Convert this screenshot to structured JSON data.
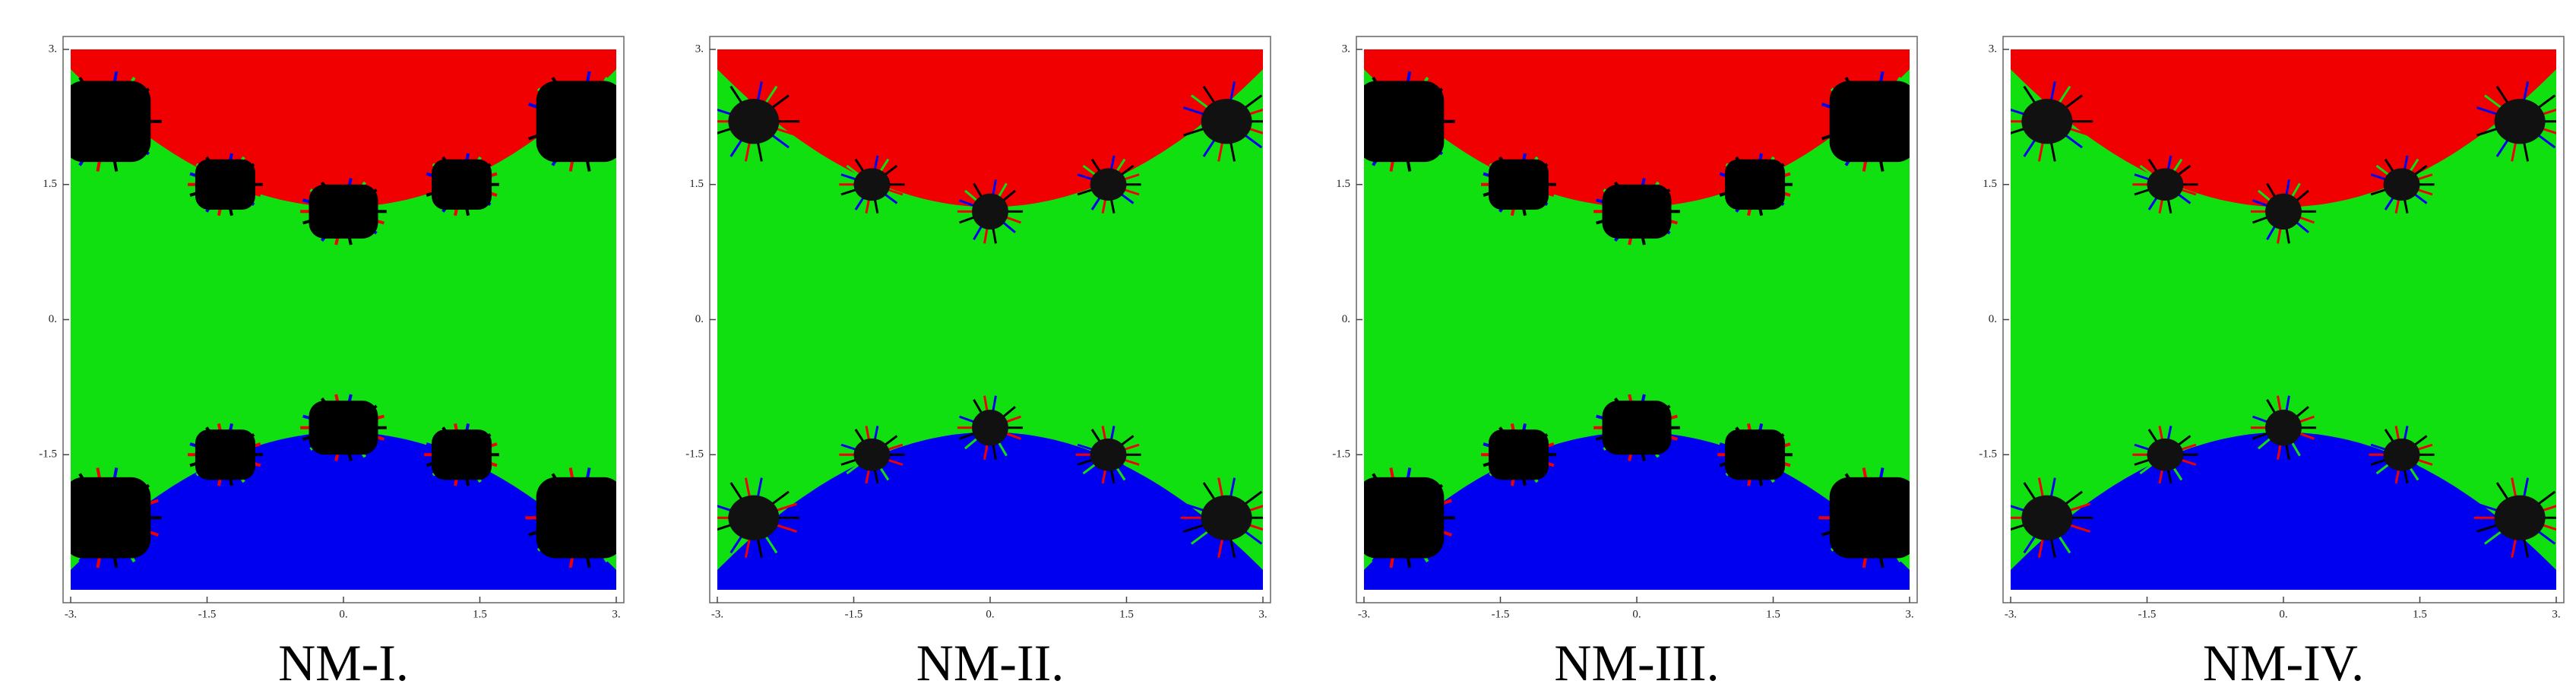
{
  "chart_data": [
    {
      "type": "basin",
      "title": "NM-I.",
      "xlim": [
        -3,
        3
      ],
      "ylim": [
        -3,
        3
      ],
      "xticks": [
        {
          "value": -3,
          "label": "-3."
        },
        -1.5,
        {
          "value": 0,
          "label": "0."
        },
        1.5,
        {
          "value": 3,
          "label": "3."
        }
      ],
      "yticks": [
        {
          "value": 3,
          "label": "3."
        },
        1.5,
        {
          "value": 0,
          "label": "0."
        },
        -1.5
      ]
    },
    {
      "type": "basin",
      "title": "NM-II.",
      "xlim": [
        -3,
        3
      ],
      "ylim": [
        -3,
        3
      ],
      "xticks": [
        {
          "value": -3,
          "label": "-3."
        },
        -1.5,
        {
          "value": 0,
          "label": "0."
        },
        1.5,
        {
          "value": 3,
          "label": "3."
        }
      ],
      "yticks": [
        {
          "value": 3,
          "label": "3."
        },
        1.5,
        {
          "value": 0,
          "label": "0."
        },
        -1.5
      ]
    },
    {
      "type": "basin",
      "title": "NM-III.",
      "xlim": [
        -3,
        3
      ],
      "ylim": [
        -3,
        3
      ],
      "xticks": [
        {
          "value": -3,
          "label": "-3."
        },
        -1.5,
        {
          "value": 0,
          "label": "0."
        },
        1.5,
        {
          "value": 3,
          "label": "3."
        }
      ],
      "yticks": [
        {
          "value": 3,
          "label": "3."
        },
        1.5,
        {
          "value": 0,
          "label": "0."
        },
        -1.5
      ]
    },
    {
      "type": "basin",
      "title": "NM-IV.",
      "xlim": [
        -3,
        3
      ],
      "ylim": [
        -3,
        3
      ],
      "xticks": [
        {
          "value": -3,
          "label": "-3."
        },
        -1.5,
        {
          "value": 0,
          "label": "0."
        },
        1.5,
        {
          "value": 3,
          "label": "3."
        }
      ],
      "yticks": [
        {
          "value": 3,
          "label": "3."
        },
        1.5,
        {
          "value": 0,
          "label": "0."
        },
        -1.5
      ]
    }
  ]
}
